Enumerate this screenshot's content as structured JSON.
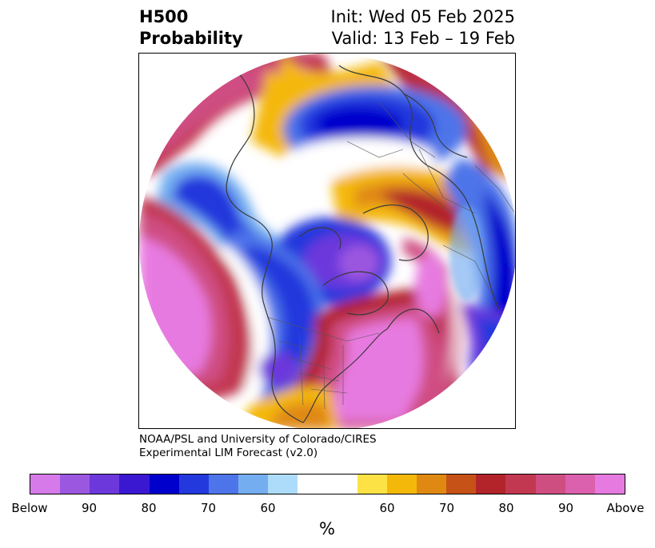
{
  "header": {
    "variable": "H500",
    "quantity": "Probability",
    "init": "Init: Wed 05 Feb 2025",
    "valid": "Valid: 13 Feb – 19 Feb"
  },
  "credit": {
    "line1": "NOAA/PSL and University of Colorado/CIRES",
    "line2": "Experimental LIM Forecast (v2.0)"
  },
  "colorbar": {
    "unit": "%",
    "colors": [
      "#d77ae9",
      "#9b57e0",
      "#6c38db",
      "#3a18d2",
      "#0000cd",
      "#2339dd",
      "#4d75e9",
      "#74aef1",
      "#addcfa",
      "#ffffff",
      "#fde245",
      "#f4b80b",
      "#e08912",
      "#c65218",
      "#b2242a",
      "#c23851",
      "#cf4e82",
      "#db60ad",
      "#e77ae0"
    ],
    "tick_labels": [
      "Below",
      "90",
      "80",
      "70",
      "60",
      "60",
      "70",
      "80",
      "90",
      "Above"
    ]
  },
  "map": {
    "projection": "north-polar-stereographic",
    "features": [
      "coastlines",
      "country-borders",
      "us-state-borders"
    ],
    "palette": {
      "blue_deep": "#0000cd",
      "purple": "#9b57e0",
      "magenta": "#e77ae0",
      "red": "#b2242a",
      "orange": "#e08912",
      "yellow": "#f4b80b",
      "coast": "#3a3a3a"
    }
  }
}
